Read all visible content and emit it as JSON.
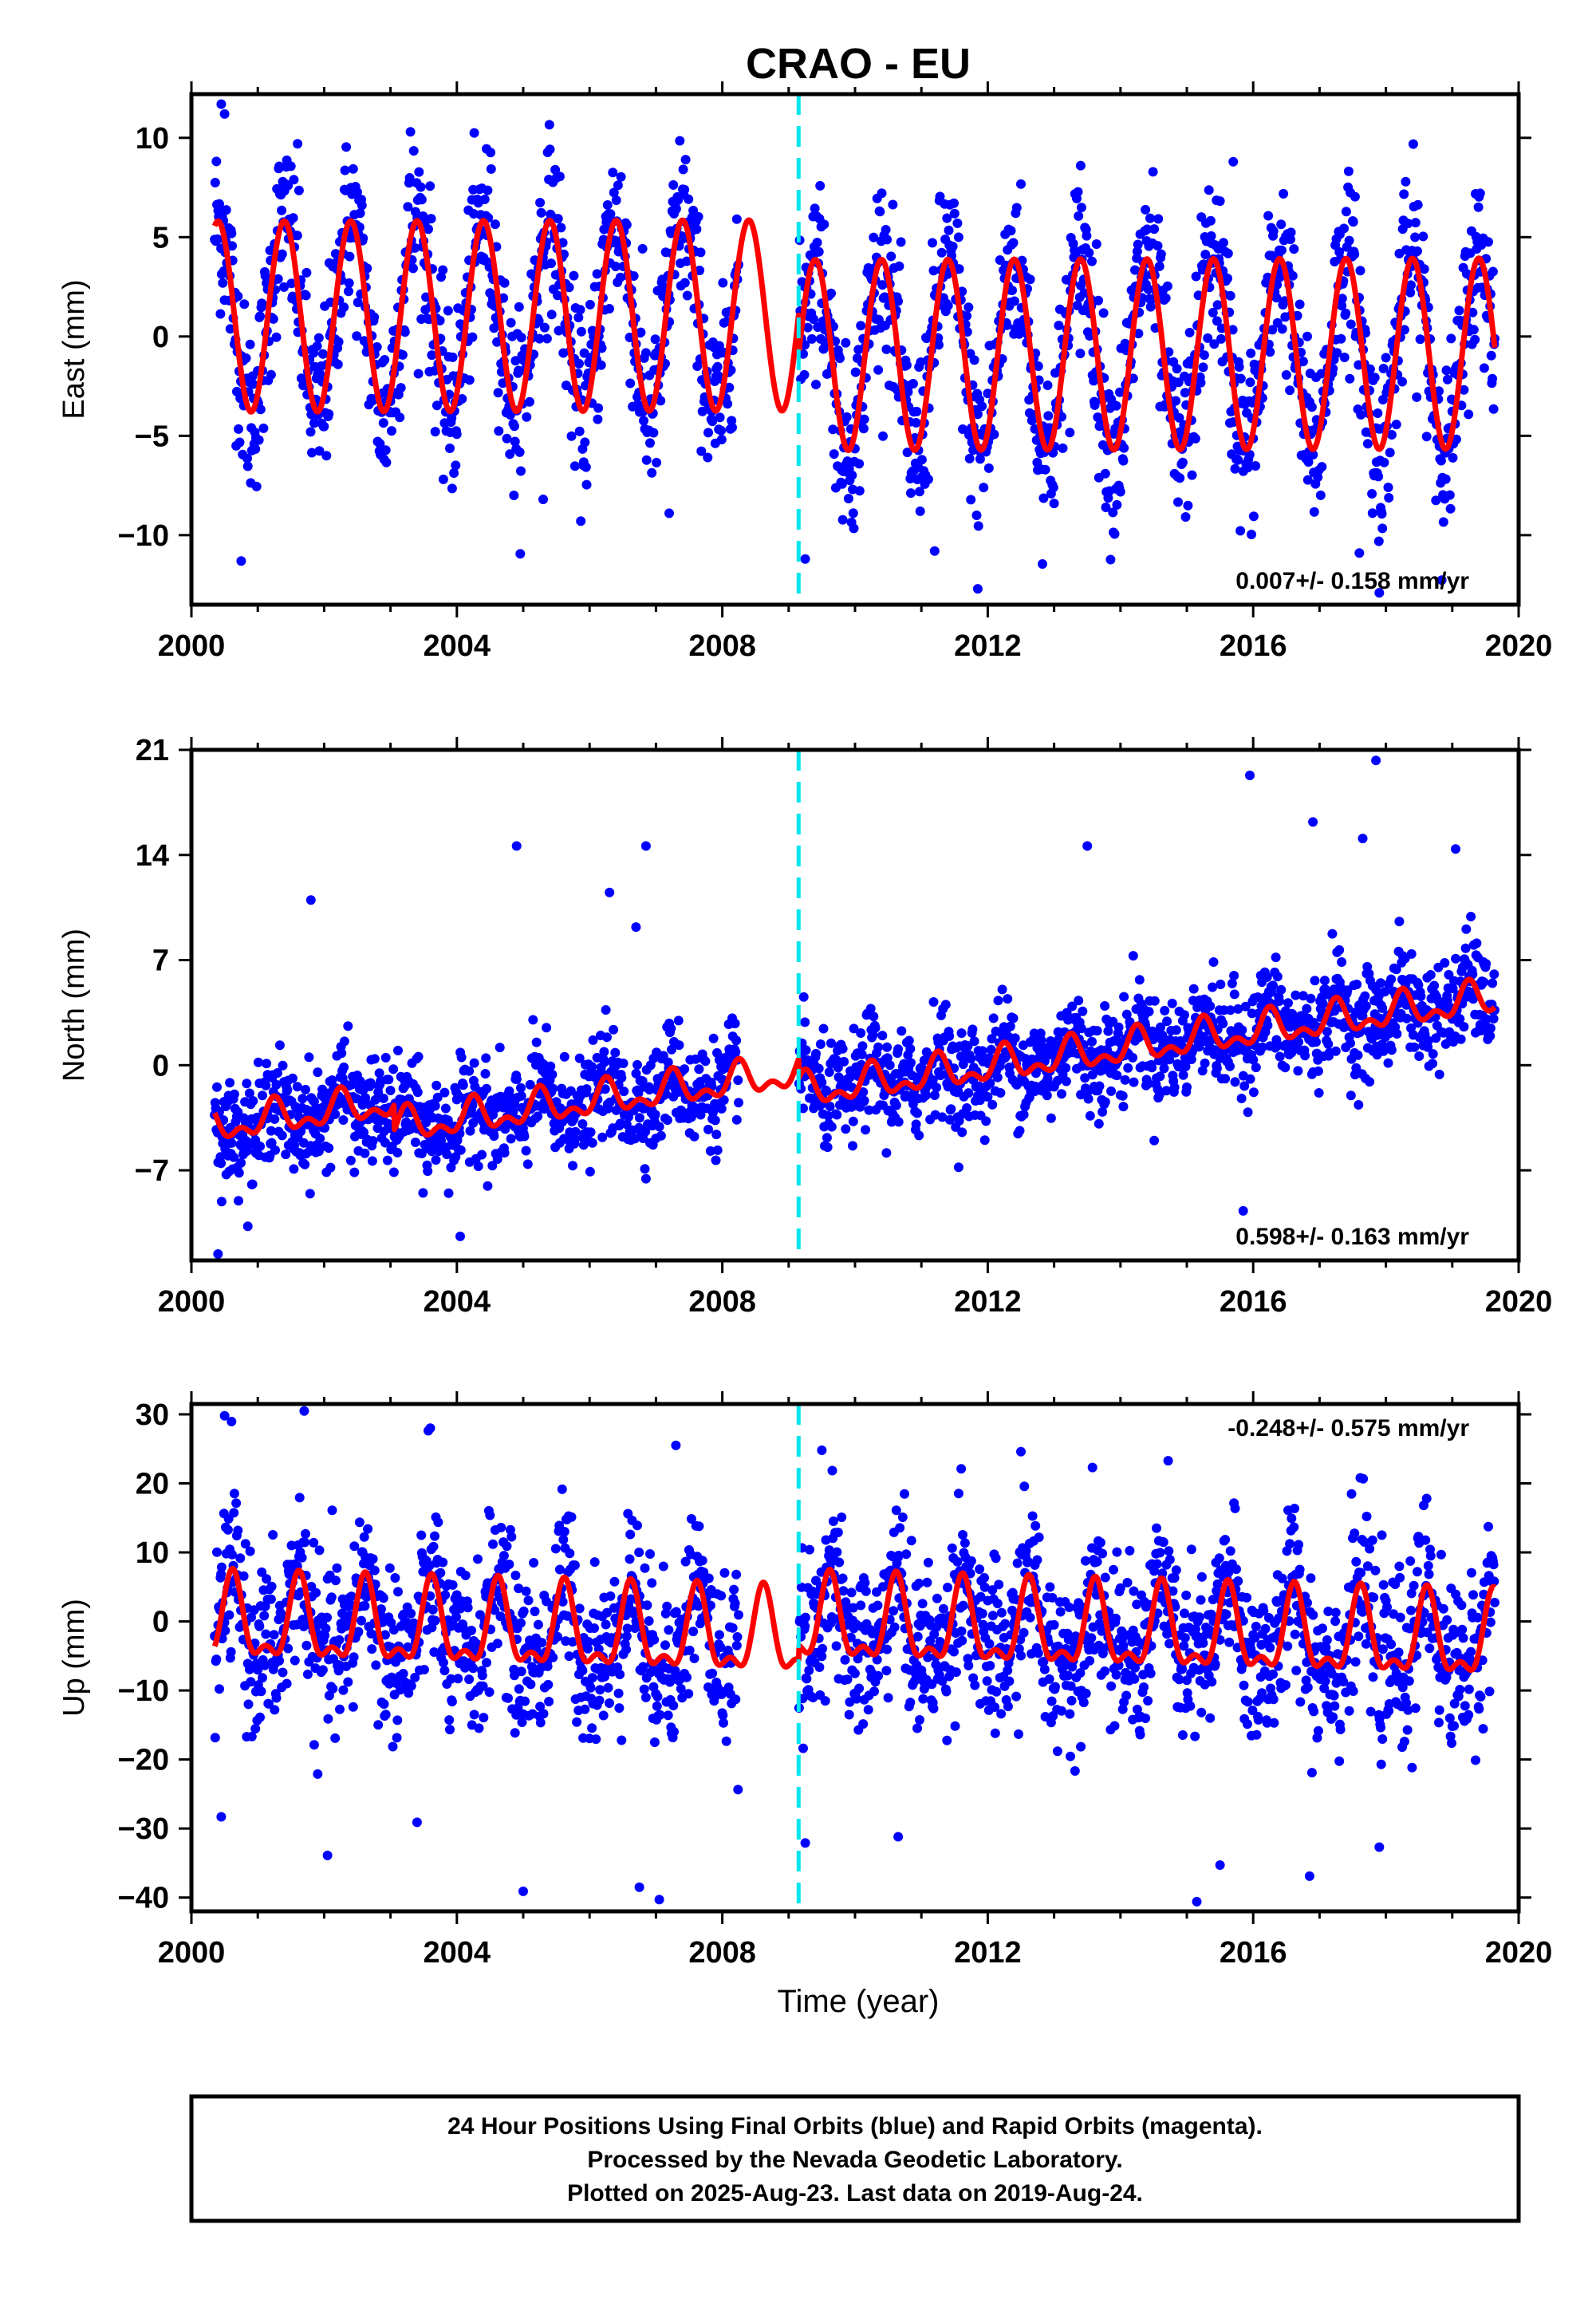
{
  "colors": {
    "points": "#0000ff",
    "model": "#ff0000",
    "break": "#00e5ee",
    "frame": "#000000"
  },
  "chart_data": {
    "title": "CRAO - EU",
    "xlabel": "Time (year)",
    "xlim": [
      2000,
      2020
    ],
    "xticks": [
      2000,
      2004,
      2008,
      2012,
      2016,
      2020
    ],
    "break_epoch": 2009.15,
    "panels": [
      {
        "type": "scatter",
        "component": "east",
        "ylabel": "East (mm)",
        "ylim": [
          -13.5,
          12.2
        ],
        "yticks": [
          -10,
          -5,
          0,
          5,
          10
        ],
        "rate_label": "0.007+/- 0.158 mm/yr",
        "rate_position": "bottom-right",
        "data_span": [
          2000.35,
          2019.64
        ],
        "model": {
          "segments": [
            {
              "from": 2000.35,
              "to": 2009.15,
              "offset": 1.0,
              "trend": 0.007,
              "annual_amplitude": 4.8,
              "annual_peak": 2000.4,
              "semiannual_amplitude": 0.0
            },
            {
              "from": 2009.15,
              "to": 2019.64,
              "offset": -1.0,
              "trend": 0.007,
              "annual_amplitude": 4.8,
              "annual_peak": 2000.4,
              "semiannual_amplitude": 0.0
            }
          ]
        },
        "scatter_sd": 2.2,
        "outliers": [
          [
            2000.45,
            11.7
          ],
          [
            2000.5,
            11.2
          ],
          [
            2000.75,
            -11.3
          ],
          [
            2001.6,
            9.7
          ],
          [
            2003.3,
            10.3
          ],
          [
            2007.2,
            -8.9
          ],
          [
            2009.25,
            -11.2
          ],
          [
            2011.2,
            -10.8
          ],
          [
            2011.85,
            -12.7
          ],
          [
            2015.7,
            8.8
          ],
          [
            2017.9,
            -12.9
          ],
          [
            2017.6,
            -10.9
          ],
          [
            2013.4,
            8.6
          ],
          [
            2005.3,
            -8.2
          ]
        ]
      },
      {
        "type": "scatter",
        "component": "north",
        "ylabel": "North (mm)",
        "ylim": [
          -13,
          21
        ],
        "yticks": [
          -7,
          0,
          7,
          14,
          21
        ],
        "rate_label": "0.598+/- 0.163 mm/yr",
        "rate_position": "bottom-right",
        "data_span": [
          2000.35,
          2019.64
        ],
        "model": {
          "segments": [
            {
              "from": 2000.35,
              "to": 2003.05,
              "offset": -4.3,
              "trend": 0.598,
              "annual_amplitude": 0.9,
              "annual_peak": 2000.25,
              "semiannual_amplitude": 0.6
            },
            {
              "from": 2003.05,
              "to": 2009.15,
              "offset": -6.0,
              "trend": 0.598,
              "annual_amplitude": 0.9,
              "annual_peak": 2000.25,
              "semiannual_amplitude": 0.6
            },
            {
              "from": 2009.15,
              "to": 2019.64,
              "offset": -7.3,
              "trend": 0.598,
              "annual_amplitude": 0.9,
              "annual_peak": 2000.25,
              "semiannual_amplitude": 0.6
            }
          ]
        },
        "scatter_sd": 1.7,
        "outliers": [
          [
            2000.4,
            -12.6
          ],
          [
            2001.8,
            11.0
          ],
          [
            2004.05,
            -11.4
          ],
          [
            2004.9,
            14.6
          ],
          [
            2006.85,
            14.6
          ],
          [
            2006.7,
            9.2
          ],
          [
            2015.95,
            19.3
          ],
          [
            2015.85,
            -9.7
          ],
          [
            2016.9,
            16.2
          ],
          [
            2017.85,
            20.3
          ],
          [
            2013.5,
            14.6
          ],
          [
            2017.65,
            15.1
          ],
          [
            2019.05,
            14.4
          ],
          [
            2006.3,
            11.5
          ]
        ]
      },
      {
        "type": "scatter",
        "component": "up",
        "ylabel": "Up (mm)",
        "ylim": [
          -42,
          31.5
        ],
        "yticks": [
          -40,
          -30,
          -20,
          -10,
          0,
          10,
          20,
          30
        ],
        "rate_label": "-0.248+/- 0.575 mm/yr",
        "rate_position": "top-right",
        "data_span": [
          2000.35,
          2019.64
        ],
        "model": {
          "segments": [
            {
              "from": 2000.35,
              "to": 2009.15,
              "offset": -0.3,
              "trend": -0.248,
              "annual_amplitude": 5.5,
              "annual_peak": 2000.62,
              "semiannual_amplitude": 2.6
            },
            {
              "from": 2009.15,
              "to": 2019.64,
              "offset": 1.8,
              "trend": -0.248,
              "annual_amplitude": 5.5,
              "annual_peak": 2000.62,
              "semiannual_amplitude": 2.6
            }
          ]
        },
        "scatter_sd": 6.0,
        "outliers": [
          [
            2000.5,
            29.8
          ],
          [
            2001.7,
            30.5
          ],
          [
            2003.6,
            28.0
          ],
          [
            2000.45,
            -28.3
          ],
          [
            2002.05,
            -33.9
          ],
          [
            2005.0,
            -39.1
          ],
          [
            2006.75,
            -38.5
          ],
          [
            2007.05,
            -40.3
          ],
          [
            2009.25,
            -32.1
          ],
          [
            2010.65,
            -31.2
          ],
          [
            2015.5,
            -35.3
          ],
          [
            2015.15,
            -40.6
          ],
          [
            2016.85,
            -36.9
          ],
          [
            2017.9,
            -32.7
          ],
          [
            2011.6,
            22.1
          ],
          [
            2012.5,
            24.6
          ],
          [
            2007.3,
            25.5
          ],
          [
            2009.5,
            24.8
          ],
          [
            2003.4,
            -29.1
          ]
        ]
      }
    ]
  },
  "footer": {
    "line1": "24 Hour Positions Using Final Orbits (blue) and Rapid Orbits (magenta).",
    "line2": "Processed by the Nevada Geodetic Laboratory.",
    "line3": "Plotted on 2025-Aug-23. Last data on 2019-Aug-24."
  }
}
